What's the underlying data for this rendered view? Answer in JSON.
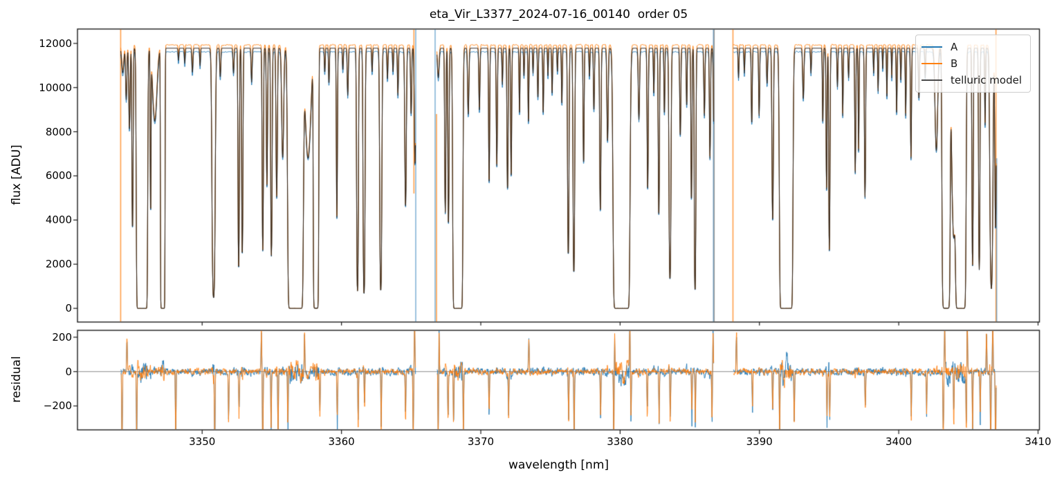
{
  "figure": {
    "title": "eta_Vir_L3377_2024-07-16_00140  order 05"
  },
  "x_axis": {
    "label": "wavelength [nm]",
    "tick_labels": [
      "3350",
      "3360",
      "3370",
      "3380",
      "3390",
      "3400",
      "3410"
    ],
    "tick_values": [
      3350,
      3360,
      3370,
      3380,
      3390,
      3400,
      3410
    ]
  },
  "top_panel": {
    "ylabel": "flux [ADU]",
    "tick_labels": [
      "0",
      "2000",
      "4000",
      "6000",
      "8000",
      "10000",
      "12000"
    ],
    "tick_values": [
      0,
      2000,
      4000,
      6000,
      8000,
      10000,
      12000
    ]
  },
  "bottom_panel": {
    "ylabel": "residual",
    "tick_labels": [
      "−200",
      "0",
      "200"
    ],
    "tick_values": [
      -200,
      0,
      200
    ]
  },
  "chart_data": {
    "type": "line",
    "title": "eta_Vir_L3377_2024-07-16_00140  order 05",
    "xlabel": "wavelength [nm]",
    "xlim": [
      3341.05,
      3410.1
    ],
    "grid": false,
    "legend_position": "upper right",
    "series": [
      {
        "name": "A",
        "color": "#1f77b4",
        "continuum_adu": 11620
      },
      {
        "name": "B",
        "color": "#ff7f0e",
        "continuum_adu": 11930
      },
      {
        "name": "telluric model",
        "color": "#4a4a4a",
        "continuum_adu": 11780
      }
    ],
    "flux_panel": {
      "ylabel": "flux [ADU]",
      "ylim": [
        -620,
        12650
      ],
      "yticks": [
        0,
        2000,
        4000,
        6000,
        8000,
        10000,
        12000
      ]
    },
    "residual_panel": {
      "ylabel": "residual",
      "ylim": [
        -339,
        240
      ],
      "yticks": [
        -200,
        0,
        200
      ],
      "zero_line_color": "#888888",
      "noise_sigma_base": 30,
      "noise_sigma_line_boost": 95
    },
    "segments": [
      {
        "range": [
          3344.15,
          3365.32
        ],
        "absorption_lines": [
          [
            3344.3,
            0.1,
            0.1
          ],
          [
            3344.55,
            0.22,
            0.06
          ],
          [
            3344.78,
            0.38,
            0.06
          ],
          [
            3345.0,
            1.2,
            0.05
          ],
          [
            3345.68,
            30,
            0.3
          ],
          [
            3346.3,
            1.0,
            0.035
          ],
          [
            3346.6,
            0.33,
            0.2
          ],
          [
            3347.17,
            13,
            0.13
          ],
          [
            3348.3,
            0.05,
            0.04
          ],
          [
            3348.75,
            0.06,
            0.04
          ],
          [
            3349.3,
            0.1,
            0.05
          ],
          [
            3349.85,
            0.07,
            0.04
          ],
          [
            3350.82,
            3.2,
            0.1
          ],
          [
            3351.3,
            0.12,
            0.05
          ],
          [
            3352.25,
            0.1,
            0.05
          ],
          [
            3352.62,
            1.9,
            0.05
          ],
          [
            3352.88,
            1.6,
            0.05
          ],
          [
            3353.55,
            0.14,
            0.05
          ],
          [
            3354.35,
            1.5,
            0.05
          ],
          [
            3354.65,
            0.75,
            0.05
          ],
          [
            3354.97,
            1.6,
            0.055
          ],
          [
            3355.35,
            0.85,
            0.06
          ],
          [
            3355.78,
            0.55,
            0.09
          ],
          [
            3356.7,
            26,
            0.42
          ],
          [
            3357.6,
            0.55,
            0.25
          ],
          [
            3358.17,
            9,
            0.16
          ],
          [
            3358.8,
            0.1,
            0.04
          ],
          [
            3359.1,
            0.15,
            0.04
          ],
          [
            3359.67,
            1.05,
            0.045
          ],
          [
            3360.1,
            0.09,
            0.04
          ],
          [
            3360.45,
            0.2,
            0.05
          ],
          [
            3361.15,
            2.7,
            0.06
          ],
          [
            3361.62,
            2.9,
            0.065
          ],
          [
            3362.2,
            0.1,
            0.04
          ],
          [
            3362.82,
            2.7,
            0.07
          ],
          [
            3363.3,
            0.13,
            0.045
          ],
          [
            3363.7,
            0.1,
            0.04
          ],
          [
            3364.05,
            0.2,
            0.045
          ],
          [
            3364.6,
            0.95,
            0.065
          ],
          [
            3365.0,
            0.3,
            0.05
          ],
          [
            3365.28,
            0.6,
            0.06
          ]
        ],
        "residual_spikes": [
          [
            3344.25,
            -500
          ],
          [
            3344.6,
            230
          ],
          [
            3345.3,
            -420
          ],
          [
            3348.1,
            -430
          ],
          [
            3350.9,
            -520
          ],
          [
            3351.9,
            -300
          ],
          [
            3352.65,
            -260
          ],
          [
            3354.25,
            260
          ],
          [
            3354.35,
            -560
          ],
          [
            3354.95,
            -340
          ],
          [
            3355.45,
            -420
          ],
          [
            3356.15,
            -380
          ],
          [
            3357.35,
            250
          ],
          [
            3358.45,
            -280
          ],
          [
            3359.7,
            -330
          ],
          [
            3361.2,
            -350
          ],
          [
            3361.65,
            -260
          ],
          [
            3362.85,
            -300
          ],
          [
            3364.6,
            -280
          ],
          [
            3365.15,
            -430
          ],
          [
            3365.25,
            300
          ]
        ]
      },
      {
        "range": [
          3366.85,
          3386.72
        ],
        "absorption_lines": [
          [
            3366.95,
            0.12,
            0.08
          ],
          [
            3367.45,
            1.0,
            0.05
          ],
          [
            3367.68,
            1.15,
            0.05
          ],
          [
            3368.35,
            18,
            0.28
          ],
          [
            3369.1,
            0.3,
            0.06
          ],
          [
            3369.9,
            0.28,
            0.05
          ],
          [
            3370.6,
            0.75,
            0.045
          ],
          [
            3371.15,
            0.6,
            0.05
          ],
          [
            3371.55,
            0.15,
            0.04
          ],
          [
            3371.92,
            0.8,
            0.05
          ],
          [
            3372.18,
            0.7,
            0.045
          ],
          [
            3372.78,
            0.3,
            0.04
          ],
          [
            3373.1,
            0.12,
            0.035
          ],
          [
            3373.42,
            0.35,
            0.04
          ],
          [
            3373.75,
            0.1,
            0.035
          ],
          [
            3374.1,
            0.22,
            0.04
          ],
          [
            3374.48,
            0.3,
            0.04
          ],
          [
            3374.82,
            0.12,
            0.035
          ],
          [
            3375.12,
            0.2,
            0.04
          ],
          [
            3375.5,
            0.1,
            0.035
          ],
          [
            3375.82,
            0.25,
            0.04
          ],
          [
            3376.28,
            1.6,
            0.055
          ],
          [
            3376.68,
            2.0,
            0.06
          ],
          [
            3377.38,
            0.6,
            0.045
          ],
          [
            3377.8,
            0.12,
            0.04
          ],
          [
            3378.12,
            0.28,
            0.045
          ],
          [
            3378.58,
            1.0,
            0.055
          ],
          [
            3379.1,
            0.45,
            0.06
          ],
          [
            3380.1,
            27,
            0.45
          ],
          [
            3381.35,
            0.32,
            0.06
          ],
          [
            3381.98,
            0.8,
            0.05
          ],
          [
            3382.42,
            0.2,
            0.04
          ],
          [
            3382.78,
            1.05,
            0.05
          ],
          [
            3383.18,
            0.3,
            0.04
          ],
          [
            3383.58,
            2.2,
            0.07
          ],
          [
            3384.32,
            0.42,
            0.05
          ],
          [
            3384.78,
            0.26,
            0.04
          ],
          [
            3385.12,
            0.9,
            0.045
          ],
          [
            3385.38,
            2.7,
            0.055
          ],
          [
            3386.05,
            0.3,
            0.05
          ],
          [
            3386.45,
            0.55,
            0.05
          ],
          [
            3386.78,
            0.9,
            0.07
          ]
        ],
        "residual_spikes": [
          [
            3366.95,
            -460
          ],
          [
            3367.0,
            280
          ],
          [
            3367.65,
            -290
          ],
          [
            3368.05,
            -340
          ],
          [
            3368.75,
            -380
          ],
          [
            3370.6,
            -260
          ],
          [
            3372.0,
            -240
          ],
          [
            3373.45,
            230
          ],
          [
            3376.3,
            -330
          ],
          [
            3376.7,
            -430
          ],
          [
            3378.6,
            -260
          ],
          [
            3379.55,
            -500
          ],
          [
            3379.6,
            270
          ],
          [
            3380.7,
            290
          ],
          [
            3380.78,
            -280
          ],
          [
            3381.95,
            -260
          ],
          [
            3382.8,
            -300
          ],
          [
            3383.6,
            -380
          ],
          [
            3385.15,
            -260
          ],
          [
            3385.4,
            -300
          ],
          [
            3386.6,
            -320
          ],
          [
            3386.67,
            260
          ]
        ]
      },
      {
        "range": [
          3388.12,
          3407.0
        ],
        "absorption_lines": [
          [
            3388.5,
            0.12,
            0.04
          ],
          [
            3388.92,
            0.1,
            0.04
          ],
          [
            3389.45,
            0.35,
            0.045
          ],
          [
            3389.98,
            0.3,
            0.045
          ],
          [
            3390.55,
            0.15,
            0.05
          ],
          [
            3390.95,
            1.1,
            0.06
          ],
          [
            3391.92,
            26,
            0.36
          ],
          [
            3393.15,
            0.22,
            0.06
          ],
          [
            3393.7,
            0.1,
            0.04
          ],
          [
            3394.55,
            0.35,
            0.04
          ],
          [
            3394.82,
            0.78,
            0.045
          ],
          [
            3395.02,
            1.5,
            0.05
          ],
          [
            3395.6,
            0.16,
            0.04
          ],
          [
            3395.98,
            0.3,
            0.04
          ],
          [
            3396.4,
            0.12,
            0.04
          ],
          [
            3396.88,
            0.65,
            0.045
          ],
          [
            3397.12,
            0.5,
            0.04
          ],
          [
            3397.58,
            0.85,
            0.05
          ],
          [
            3398.2,
            0.1,
            0.035
          ],
          [
            3398.52,
            0.18,
            0.035
          ],
          [
            3398.85,
            0.09,
            0.03
          ],
          [
            3399.15,
            0.22,
            0.035
          ],
          [
            3399.5,
            0.12,
            0.03
          ],
          [
            3399.85,
            0.3,
            0.04
          ],
          [
            3400.15,
            0.14,
            0.035
          ],
          [
            3400.5,
            0.3,
            0.04
          ],
          [
            3400.88,
            0.55,
            0.045
          ],
          [
            3401.45,
            0.22,
            0.05
          ],
          [
            3401.9,
            0.12,
            0.04
          ],
          [
            3402.7,
            0.5,
            0.12
          ],
          [
            3403.4,
            9,
            0.24
          ],
          [
            3403.95,
            1.3,
            0.16
          ],
          [
            3404.45,
            14,
            0.3
          ],
          [
            3405.3,
            1.8,
            0.05
          ],
          [
            3405.78,
            1.9,
            0.05
          ],
          [
            3406.2,
            0.35,
            0.04
          ],
          [
            3406.65,
            2.6,
            0.1
          ],
          [
            3406.95,
            1.2,
            0.06
          ]
        ],
        "residual_spikes": [
          [
            3388.35,
            260
          ],
          [
            3389.5,
            -240
          ],
          [
            3390.95,
            -300
          ],
          [
            3391.45,
            -420
          ],
          [
            3392.5,
            -340
          ],
          [
            3394.85,
            -280
          ],
          [
            3395.05,
            -300
          ],
          [
            3397.6,
            -260
          ],
          [
            3400.9,
            -280
          ],
          [
            3402.0,
            -240
          ],
          [
            3403.2,
            -460
          ],
          [
            3403.3,
            280
          ],
          [
            3403.95,
            -320
          ],
          [
            3404.85,
            -380
          ],
          [
            3404.92,
            300
          ],
          [
            3405.3,
            -340
          ],
          [
            3405.85,
            -300
          ],
          [
            3406.3,
            280
          ],
          [
            3406.6,
            -500
          ],
          [
            3406.75,
            340
          ],
          [
            3406.95,
            -560
          ]
        ]
      }
    ],
    "edge_spikes": [
      [
        3344.15,
        "B",
        null,
        null
      ],
      [
        3365.2,
        "B",
        12650,
        5200
      ],
      [
        3365.33,
        "A",
        null,
        null
      ],
      [
        3366.72,
        "A",
        null,
        null
      ],
      [
        3366.82,
        "B",
        8800,
        -620
      ],
      [
        3386.7,
        "A",
        null,
        null
      ],
      [
        3386.75,
        "M",
        null,
        null
      ],
      [
        3388.1,
        "B",
        null,
        null
      ],
      [
        3406.98,
        "B",
        null,
        null
      ],
      [
        3407.03,
        "A",
        6800,
        -620
      ]
    ]
  }
}
